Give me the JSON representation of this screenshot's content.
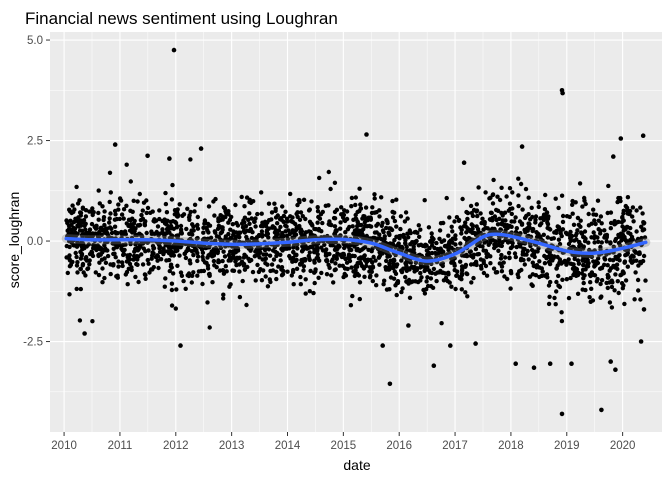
{
  "chart_data": {
    "type": "scatter",
    "title": "Financial news sentiment using Loughran",
    "xlabel": "date",
    "ylabel": "score_loughran",
    "x_ticks": [
      "2010",
      "2011",
      "2012",
      "2013",
      "2014",
      "2015",
      "2016",
      "2017",
      "2018",
      "2019",
      "2020"
    ],
    "y_ticks": [
      {
        "value": 5.0,
        "label": "5.0"
      },
      {
        "value": 2.5,
        "label": "2.5"
      },
      {
        "value": 0.0,
        "label": "0.0"
      },
      {
        "value": -2.5,
        "label": "-2.5"
      }
    ],
    "xlim": [
      "2009-10-01",
      "2020-09-15"
    ],
    "ylim": [
      -4.75,
      5.2
    ],
    "point_color": "#000000",
    "smooth_color": "#3366ff",
    "panel_background": "#ebebeb",
    "grid_color": "#ffffff",
    "grid": true,
    "legend": "none",
    "date_range": [
      "2010-01-15",
      "2020-06-01"
    ],
    "smooth": [
      {
        "x": "2010-01-15",
        "y": 0.06
      },
      {
        "x": "2010-07-01",
        "y": 0.03
      },
      {
        "x": "2011-01-01",
        "y": 0.03
      },
      {
        "x": "2011-07-01",
        "y": 0.03
      },
      {
        "x": "2012-01-01",
        "y": 0.0
      },
      {
        "x": "2012-07-01",
        "y": -0.05
      },
      {
        "x": "2013-01-01",
        "y": -0.08
      },
      {
        "x": "2013-07-01",
        "y": -0.07
      },
      {
        "x": "2014-01-01",
        "y": -0.03
      },
      {
        "x": "2014-07-01",
        "y": 0.03
      },
      {
        "x": "2015-01-01",
        "y": 0.04
      },
      {
        "x": "2015-07-01",
        "y": -0.05
      },
      {
        "x": "2016-01-01",
        "y": -0.3
      },
      {
        "x": "2016-07-01",
        "y": -0.5
      },
      {
        "x": "2017-01-01",
        "y": -0.32
      },
      {
        "x": "2017-07-01",
        "y": 0.1
      },
      {
        "x": "2017-10-01",
        "y": 0.17
      },
      {
        "x": "2018-01-01",
        "y": 0.12
      },
      {
        "x": "2018-07-01",
        "y": -0.05
      },
      {
        "x": "2019-01-01",
        "y": -0.25
      },
      {
        "x": "2019-07-01",
        "y": -0.3
      },
      {
        "x": "2020-01-01",
        "y": -0.18
      },
      {
        "x": "2020-06-01",
        "y": -0.03
      }
    ],
    "outliers": [
      {
        "x": "2011-12-20",
        "y": 4.75
      },
      {
        "x": "2018-12-01",
        "y": 3.75
      },
      {
        "x": "2018-12-05",
        "y": 3.68
      },
      {
        "x": "2015-06-01",
        "y": 2.65
      },
      {
        "x": "2020-05-15",
        "y": 2.62
      },
      {
        "x": "2019-12-20",
        "y": 2.55
      },
      {
        "x": "2012-06-15",
        "y": 2.3
      },
      {
        "x": "2010-12-01",
        "y": 2.4
      },
      {
        "x": "2018-03-15",
        "y": 2.35
      },
      {
        "x": "2017-03-01",
        "y": 1.95
      },
      {
        "x": "2019-11-01",
        "y": 2.1
      },
      {
        "x": "2011-07-01",
        "y": 2.12
      },
      {
        "x": "2011-11-20",
        "y": 2.05
      },
      {
        "x": "2010-05-15",
        "y": -2.3
      },
      {
        "x": "2012-02-01",
        "y": -2.6
      },
      {
        "x": "2015-09-15",
        "y": -2.6
      },
      {
        "x": "2015-11-01",
        "y": -3.55
      },
      {
        "x": "2016-03-01",
        "y": -2.1
      },
      {
        "x": "2016-08-15",
        "y": -3.1
      },
      {
        "x": "2016-12-01",
        "y": -2.6
      },
      {
        "x": "2017-05-15",
        "y": -2.55
      },
      {
        "x": "2018-02-01",
        "y": -3.05
      },
      {
        "x": "2018-06-01",
        "y": -3.15
      },
      {
        "x": "2018-09-15",
        "y": -3.05
      },
      {
        "x": "2018-12-01",
        "y": -4.3
      },
      {
        "x": "2019-02-01",
        "y": -3.05
      },
      {
        "x": "2019-08-15",
        "y": -4.2
      },
      {
        "x": "2019-10-15",
        "y": -3.0
      },
      {
        "x": "2019-11-15",
        "y": -3.2
      },
      {
        "x": "2020-05-01",
        "y": -2.5
      },
      {
        "x": "2020-05-20",
        "y": -1.7
      }
    ]
  }
}
